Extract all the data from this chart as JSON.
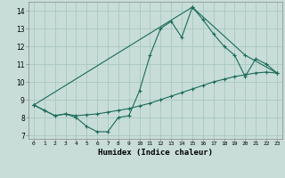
{
  "xlabel": "Humidex (Indice chaleur)",
  "background_color": "#c8ddd8",
  "grid_color": "#a8c8c0",
  "line_color": "#1a6b5a",
  "x_ticks": [
    0,
    1,
    2,
    3,
    4,
    5,
    6,
    7,
    8,
    9,
    10,
    11,
    12,
    13,
    14,
    15,
    16,
    17,
    18,
    19,
    20,
    21,
    22,
    23
  ],
  "ylim": [
    6.8,
    14.5
  ],
  "xlim": [
    -0.5,
    23.5
  ],
  "curve1_x": [
    0,
    1,
    2,
    3,
    4,
    5,
    6,
    7,
    8,
    9,
    10,
    11,
    12,
    13,
    14,
    15,
    16,
    17,
    18,
    19,
    20,
    21,
    22,
    23
  ],
  "curve1_y": [
    8.7,
    8.4,
    8.1,
    8.2,
    8.0,
    7.5,
    7.2,
    7.2,
    8.0,
    8.1,
    9.5,
    11.5,
    13.0,
    13.4,
    12.5,
    14.2,
    13.5,
    12.7,
    12.0,
    11.5,
    10.3,
    11.3,
    11.0,
    10.5
  ],
  "curve2_x": [
    0,
    1,
    2,
    3,
    4,
    5,
    6,
    7,
    8,
    9,
    10,
    11,
    12,
    13,
    14,
    15,
    16,
    17,
    18,
    19,
    20,
    21,
    22,
    23
  ],
  "curve2_y": [
    8.7,
    8.4,
    8.1,
    8.2,
    8.1,
    8.15,
    8.2,
    8.3,
    8.4,
    8.5,
    8.65,
    8.8,
    9.0,
    9.2,
    9.4,
    9.6,
    9.8,
    10.0,
    10.15,
    10.3,
    10.4,
    10.5,
    10.55,
    10.5
  ],
  "curve3_x": [
    0,
    15,
    20,
    23
  ],
  "curve3_y": [
    8.7,
    14.2,
    11.5,
    10.5
  ]
}
